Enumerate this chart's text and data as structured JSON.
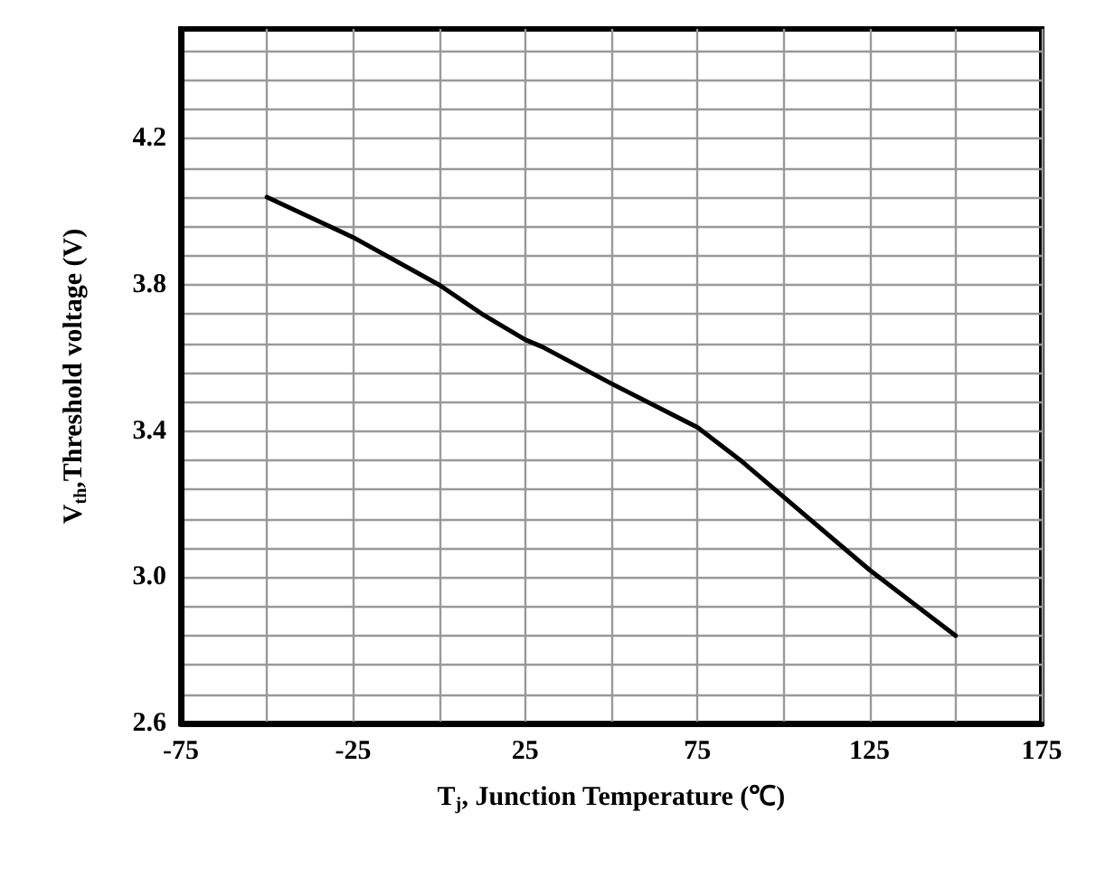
{
  "chart_data": {
    "type": "line",
    "xlabel": "T$_{j}$, Junction Temperature (℃)",
    "ylabel": "V$_{th}$,Threshold voltage (V)",
    "xlim": [
      -75,
      175
    ],
    "ylim": [
      2.6,
      4.5
    ],
    "xticks": [
      -75,
      {
        "value": -50,
        "label": null
      },
      -25,
      {
        "value": 0,
        "label": null
      },
      25,
      {
        "value": 50,
        "label": null
      },
      75,
      {
        "value": 100,
        "label": null
      },
      125,
      {
        "value": 150,
        "label": null
      },
      175
    ],
    "yticks": [
      2.6,
      {
        "value": 2.68,
        "label": null
      },
      {
        "value": 2.76,
        "label": null
      },
      {
        "value": 2.84,
        "label": null
      },
      {
        "value": 2.92,
        "label": null
      },
      {
        "value": 3.0,
        "label": "3.0"
      },
      {
        "value": 3.08,
        "label": null
      },
      {
        "value": 3.16,
        "label": null
      },
      {
        "value": 3.24,
        "label": null
      },
      {
        "value": 3.32,
        "label": null
      },
      3.4,
      {
        "value": 3.48,
        "label": null
      },
      {
        "value": 3.56,
        "label": null
      },
      {
        "value": 3.64,
        "label": null
      },
      {
        "value": 3.72,
        "label": null
      },
      3.8,
      {
        "value": 3.88,
        "label": null
      },
      {
        "value": 3.96,
        "label": null
      },
      {
        "value": 4.04,
        "label": null
      },
      {
        "value": 4.12,
        "label": null
      },
      4.2,
      {
        "value": 4.28,
        "label": null
      },
      {
        "value": 4.36,
        "label": null
      },
      {
        "value": 4.44,
        "label": null
      }
    ],
    "grid": true,
    "line_style": "solid",
    "marker": "none",
    "series": [
      {
        "color": "#000000",
        "x": [
          -50,
          -25,
          0,
          12.5,
          25,
          30,
          50,
          75,
          87.5,
          100,
          125,
          150
        ],
        "values": [
          4.04,
          3.93,
          3.8,
          3.72,
          3.65,
          3.63,
          3.53,
          3.41,
          3.32,
          3.22,
          3.02,
          2.84
        ]
      }
    ]
  }
}
